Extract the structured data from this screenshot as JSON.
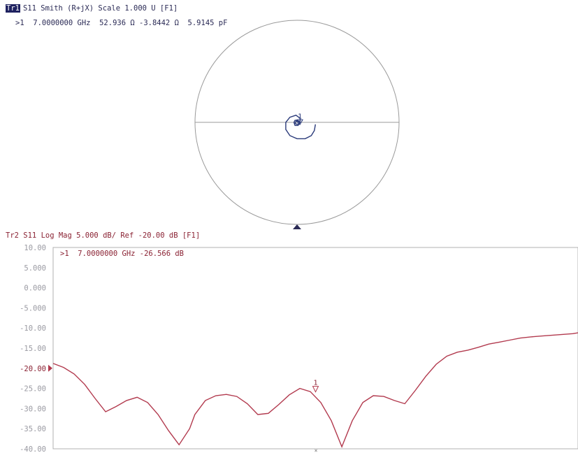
{
  "trace1": {
    "badge": "Tr1",
    "header": "S11 Smith (R+jX) Scale 1.000 U [F1]",
    "marker_readout": ">1  7.0000000 GHz  52.936 Ω -3.8442 Ω  5.9145 pF",
    "marker_label": "1",
    "color": "#2a3a7a"
  },
  "trace2": {
    "header": "Tr2 S11 Log Mag 5.000 dB/ Ref -20.00 dB [F1]",
    "marker_readout": ">1  7.0000000 GHz -26.566 dB",
    "marker_label": "1",
    "color": "#b23a4e"
  },
  "chart_data": [
    {
      "type": "smith",
      "scale": 1.0,
      "series": [
        {
          "points_real_imag": [
            [
              0.18,
              -0.02
            ],
            [
              0.17,
              -0.08
            ],
            [
              0.14,
              -0.13
            ],
            [
              0.08,
              -0.16
            ],
            [
              0.0,
              -0.16
            ],
            [
              -0.07,
              -0.13
            ],
            [
              -0.11,
              -0.07
            ],
            [
              -0.11,
              0.0
            ],
            [
              -0.07,
              0.05
            ],
            [
              -0.01,
              0.07
            ],
            [
              0.03,
              0.04
            ],
            [
              0.03,
              0.0
            ],
            [
              0.01,
              -0.03
            ],
            [
              -0.02,
              -0.03
            ],
            [
              -0.03,
              0.0
            ],
            [
              -0.02,
              0.02
            ],
            [
              0.0,
              0.02
            ],
            [
              0.02,
              0.01
            ],
            [
              0.02,
              -0.01
            ],
            [
              0.0,
              -0.02
            ],
            [
              -0.02,
              -0.01
            ],
            [
              -0.01,
              0.01
            ],
            [
              0.01,
              0.01
            ],
            [
              0.005,
              -0.005
            ]
          ]
        }
      ],
      "marker": {
        "real": 0.028,
        "imag": -0.036
      }
    },
    {
      "type": "line",
      "ylabel": "",
      "xlabel": "",
      "ylim": [
        -40,
        10
      ],
      "ref_level": -20,
      "scale_per_div": 5,
      "ytick_labels": [
        "10.00",
        "5.000",
        "0.000",
        "-5.000",
        "-10.00",
        "-15.00",
        "-20.00",
        "-25.00",
        "-30.00",
        "-35.00",
        "-40.00"
      ],
      "x": [
        0,
        0.02,
        0.04,
        0.06,
        0.08,
        0.1,
        0.12,
        0.14,
        0.16,
        0.18,
        0.2,
        0.22,
        0.24,
        0.26,
        0.27,
        0.29,
        0.31,
        0.33,
        0.35,
        0.37,
        0.39,
        0.41,
        0.43,
        0.45,
        0.47,
        0.49,
        0.51,
        0.53,
        0.55,
        0.57,
        0.59,
        0.61,
        0.63,
        0.65,
        0.67,
        0.69,
        0.71,
        0.73,
        0.75,
        0.77,
        0.79,
        0.81,
        0.83,
        0.85,
        0.87,
        0.89,
        0.91,
        0.93,
        0.95,
        0.97,
        0.99,
        1.0
      ],
      "series": [
        {
          "values": [
            -18.8,
            -19.8,
            -21.4,
            -24.0,
            -27.5,
            -30.8,
            -29.5,
            -28.0,
            -27.2,
            -28.5,
            -31.5,
            -35.5,
            -39.0,
            -35.0,
            -31.5,
            -28.0,
            -26.8,
            -26.5,
            -27.0,
            -28.8,
            -31.5,
            -31.2,
            -29.0,
            -26.6,
            -25.0,
            -25.8,
            -28.5,
            -33.0,
            -39.5,
            -33.0,
            -28.5,
            -26.8,
            -27.0,
            -28.0,
            -28.8,
            -25.5,
            -22.0,
            -19.0,
            -17.0,
            -16.0,
            -15.5,
            -14.8,
            -14.0,
            -13.5,
            -13.0,
            -12.5,
            -12.2,
            -12.0,
            -11.8,
            -11.6,
            -11.4,
            -11.2
          ]
        }
      ],
      "marker": {
        "x": 0.5,
        "y": -26.566
      }
    }
  ]
}
